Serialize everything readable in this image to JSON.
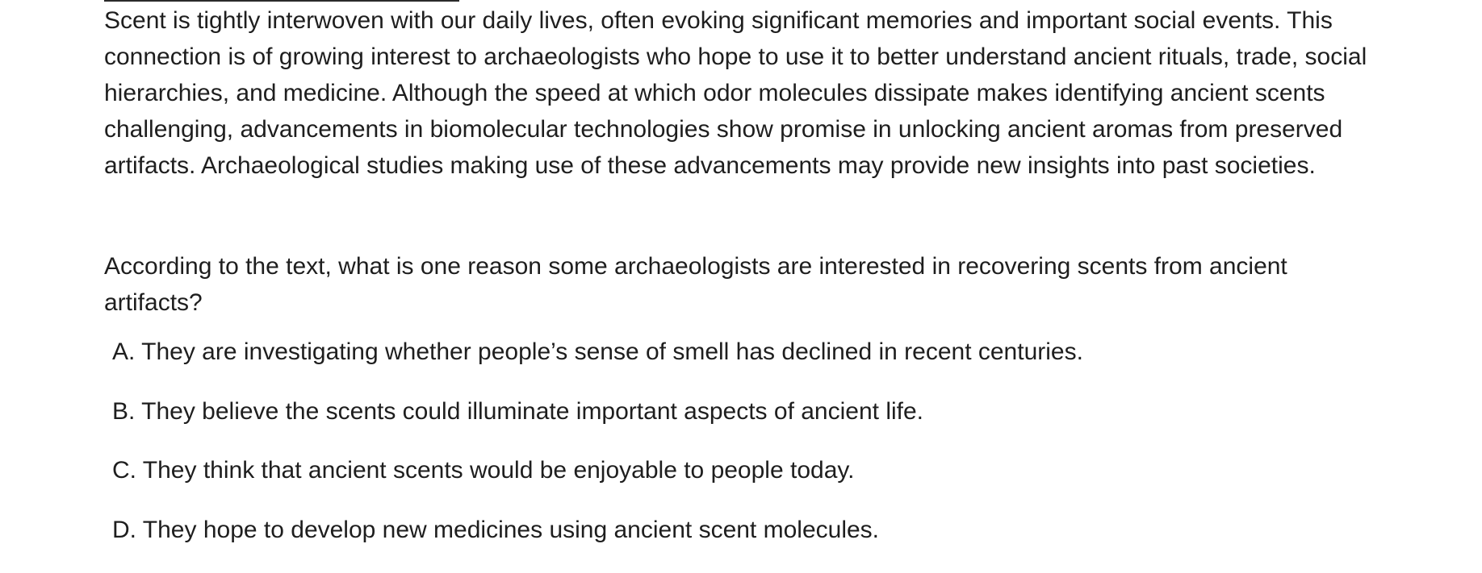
{
  "passage": {
    "text": "Scent is tightly interwoven with our daily lives, often evoking significant memories and important social events. This connection is of growing interest to archaeologists who hope to use it to better understand ancient rituals, trade, social hierarchies, and medicine. Although the speed at which odor molecules dissipate makes identifying ancient scents challenging, advancements in biomolecular technologies show promise in unlocking ancient aromas from preserved artifacts. Archaeological studies making use of these advancements may provide new insights into past societies."
  },
  "question": {
    "text": "According to the text, what is one reason some archaeologists are interested in recovering scents from ancient artifacts?"
  },
  "choices": [
    {
      "letter": "A.",
      "text": "They are investigating whether people’s sense of smell has declined in recent centuries."
    },
    {
      "letter": "B.",
      "text": "They believe the scents could illuminate important aspects of ancient life."
    },
    {
      "letter": "C.",
      "text": "They think that ancient scents would be enjoyable to people today."
    },
    {
      "letter": "D.",
      "text": "They hope to develop new medicines using ancient scent molecules."
    }
  ]
}
